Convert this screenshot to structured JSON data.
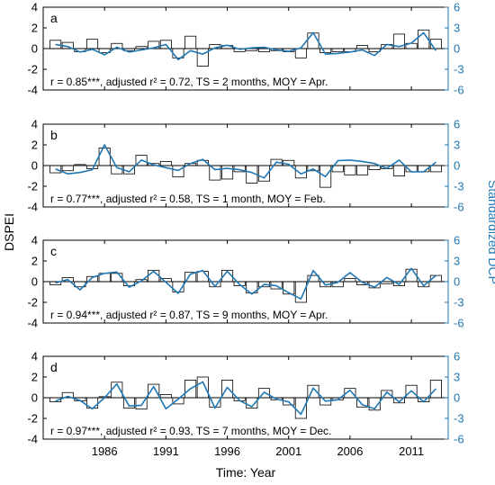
{
  "figure": {
    "ylabel_left": "DSPEI",
    "ylabel_right": "Standardized DCP",
    "xlabel": "Time: Year",
    "x_tick_labels": [
      "1986",
      "1991",
      "1996",
      "2001",
      "2006",
      "2011"
    ],
    "left_tick_labels": [
      "4",
      "2",
      "0",
      "-2",
      "-4"
    ],
    "right_tick_labels": [
      "6",
      "3",
      "0",
      "-3",
      "-6"
    ],
    "colors": {
      "bars": "#000000",
      "line": "#1f78b4",
      "right_axis": "#1f78b4",
      "axis": "#000000"
    }
  },
  "chart_data": [
    {
      "type": "bar",
      "panel_label": "a",
      "annotation": "r = 0.85***, adjusted r² = 0.72, TS = 2 months, MOY = Apr.",
      "x": [
        1982,
        1983,
        1984,
        1985,
        1986,
        1987,
        1988,
        1989,
        1990,
        1991,
        1992,
        1993,
        1994,
        1995,
        1996,
        1997,
        1998,
        1999,
        2000,
        2001,
        2002,
        2003,
        2004,
        2005,
        2006,
        2007,
        2008,
        2009,
        2010,
        2011,
        2012,
        2013
      ],
      "series": [
        {
          "axis": "left",
          "render": "bars",
          "values": [
            0.8,
            0.6,
            -0.3,
            0.9,
            -0.4,
            0.5,
            -0.2,
            0.2,
            0.7,
            0.8,
            -0.9,
            1.2,
            -1.7,
            0.4,
            0.3,
            -0.3,
            -0.2,
            -0.3,
            -0.2,
            -0.3,
            -0.9,
            1.5,
            -0.4,
            -0.3,
            -0.3,
            0.3,
            -0.3,
            0.4,
            1.4,
            0.5,
            1.8,
            0.9
          ]
        },
        {
          "axis": "right",
          "render": "line",
          "values": [
            0.6,
            0.3,
            -0.5,
            -0.1,
            -0.9,
            0.2,
            -0.5,
            -0.2,
            0.1,
            0.6,
            -1.6,
            -0.3,
            -0.8,
            0.1,
            0.5,
            -0.1,
            0.1,
            0.2,
            -0.2,
            -0.4,
            0.1,
            2.3,
            -0.8,
            -0.7,
            -0.5,
            -0.2,
            -1.0,
            0.6,
            0.3,
            0.8,
            2.3,
            -0.3
          ]
        }
      ],
      "xlim": [
        1981,
        2014
      ],
      "ylim_left": [
        -4,
        4
      ],
      "ylim_right": [
        -6,
        6
      ]
    },
    {
      "type": "bar",
      "panel_label": "b",
      "annotation": "r = 0.77***, adjusted r² = 0.58, TS = 1 month, MOY = Feb.",
      "x": [
        1982,
        1983,
        1984,
        1985,
        1986,
        1987,
        1988,
        1989,
        1990,
        1991,
        1992,
        1993,
        1994,
        1995,
        1996,
        1997,
        1998,
        1999,
        2000,
        2001,
        2002,
        2003,
        2004,
        2005,
        2006,
        2007,
        2008,
        2009,
        2010,
        2011,
        2012,
        2013
      ],
      "series": [
        {
          "axis": "left",
          "render": "bars",
          "values": [
            -0.7,
            -0.5,
            0.1,
            -0.3,
            1.7,
            -0.8,
            -0.8,
            1.0,
            0.2,
            0.4,
            -1.1,
            0.2,
            0.5,
            -1.4,
            -1.3,
            -0.6,
            -1.7,
            -1.5,
            0.6,
            0.5,
            -1.2,
            -0.5,
            -2.1,
            -0.6,
            -0.9,
            -0.9,
            -0.4,
            -0.3,
            -1.0,
            -0.6,
            -0.6,
            -0.6
          ]
        },
        {
          "axis": "right",
          "render": "line",
          "values": [
            -0.5,
            -1.2,
            -1.0,
            -0.6,
            3.0,
            -0.3,
            -0.9,
            0.8,
            0.1,
            -0.3,
            -0.7,
            0.3,
            0.9,
            -0.6,
            -0.4,
            -0.6,
            -1.0,
            -1.8,
            0.5,
            0.2,
            -1.2,
            -0.5,
            -1.6,
            0.7,
            0.8,
            0.6,
            0.3,
            -0.4,
            0.8,
            -0.9,
            -0.9,
            0.5
          ]
        }
      ],
      "xlim": [
        1981,
        2014
      ],
      "ylim_left": [
        -4,
        4
      ],
      "ylim_right": [
        -6,
        6
      ]
    },
    {
      "type": "bar",
      "panel_label": "c",
      "annotation": "r = 0.94***, adjusted r² = 0.87, TS = 9 months, MOY = Apr.",
      "x": [
        1982,
        1983,
        1984,
        1985,
        1986,
        1987,
        1988,
        1989,
        1990,
        1991,
        1992,
        1993,
        1994,
        1995,
        1996,
        1997,
        1998,
        1999,
        2000,
        2001,
        2002,
        2003,
        2004,
        2005,
        2006,
        2007,
        2008,
        2009,
        2010,
        2011,
        2012,
        2013
      ],
      "series": [
        {
          "axis": "left",
          "render": "bars",
          "values": [
            -0.3,
            0.4,
            -0.5,
            0.5,
            0.8,
            0.8,
            -0.4,
            0.2,
            1.1,
            0.3,
            -1.0,
            0.9,
            1.0,
            -0.5,
            1.1,
            -0.4,
            -1.1,
            -0.5,
            -0.7,
            -1.2,
            -2.0,
            0.6,
            -0.5,
            -0.5,
            0.3,
            -0.3,
            -0.6,
            -0.2,
            -0.4,
            1.2,
            -0.5,
            0.6
          ]
        },
        {
          "axis": "right",
          "render": "line",
          "values": [
            -0.2,
            0.3,
            -1.2,
            0.6,
            1.2,
            1.4,
            -0.8,
            0.1,
            1.5,
            -0.1,
            -1.7,
            1.1,
            1.6,
            -0.7,
            1.5,
            -0.4,
            -1.8,
            -0.4,
            -0.6,
            -1.6,
            -2.5,
            1.6,
            -0.5,
            -0.1,
            1.3,
            -0.1,
            -0.8,
            0.6,
            -0.4,
            1.9,
            -0.6,
            0.9
          ]
        }
      ],
      "xlim": [
        1981,
        2014
      ],
      "ylim_left": [
        -4,
        4
      ],
      "ylim_right": [
        -6,
        6
      ]
    },
    {
      "type": "bar",
      "panel_label": "d",
      "annotation": "r = 0.97***, adjusted r² = 0.93, TS = 7 months, MOY = Dec.",
      "x": [
        1982,
        1983,
        1984,
        1985,
        1986,
        1987,
        1988,
        1989,
        1990,
        1991,
        1992,
        1993,
        1994,
        1995,
        1996,
        1997,
        1998,
        1999,
        2000,
        2001,
        2002,
        2003,
        2004,
        2005,
        2006,
        2007,
        2008,
        2009,
        2010,
        2011,
        2012,
        2013
      ],
      "series": [
        {
          "axis": "left",
          "render": "bars",
          "values": [
            -0.4,
            0.5,
            -0.3,
            -1.0,
            0.1,
            1.5,
            -1.0,
            -1.1,
            1.3,
            0.3,
            -0.6,
            1.7,
            2.0,
            -0.9,
            1.7,
            -0.3,
            -1.0,
            0.9,
            -0.2,
            -0.7,
            -2.0,
            1.2,
            -0.7,
            -0.2,
            0.9,
            -0.9,
            -1.2,
            0.7,
            -0.5,
            1.2,
            -0.4,
            1.7
          ]
        },
        {
          "axis": "right",
          "render": "line",
          "values": [
            -0.5,
            0.2,
            -0.4,
            -1.6,
            0.0,
            2.0,
            -1.2,
            -1.1,
            1.6,
            -1.6,
            -0.2,
            1.3,
            2.3,
            -1.5,
            1.5,
            -0.4,
            -1.3,
            0.8,
            -0.2,
            -0.6,
            -2.4,
            1.4,
            -0.5,
            -0.3,
            1.1,
            -1.0,
            -1.6,
            0.8,
            -0.6,
            1.0,
            -0.6,
            1.3
          ]
        }
      ],
      "xlim": [
        1981,
        2014
      ],
      "ylim_left": [
        -4,
        4
      ],
      "ylim_right": [
        -6,
        6
      ]
    }
  ]
}
